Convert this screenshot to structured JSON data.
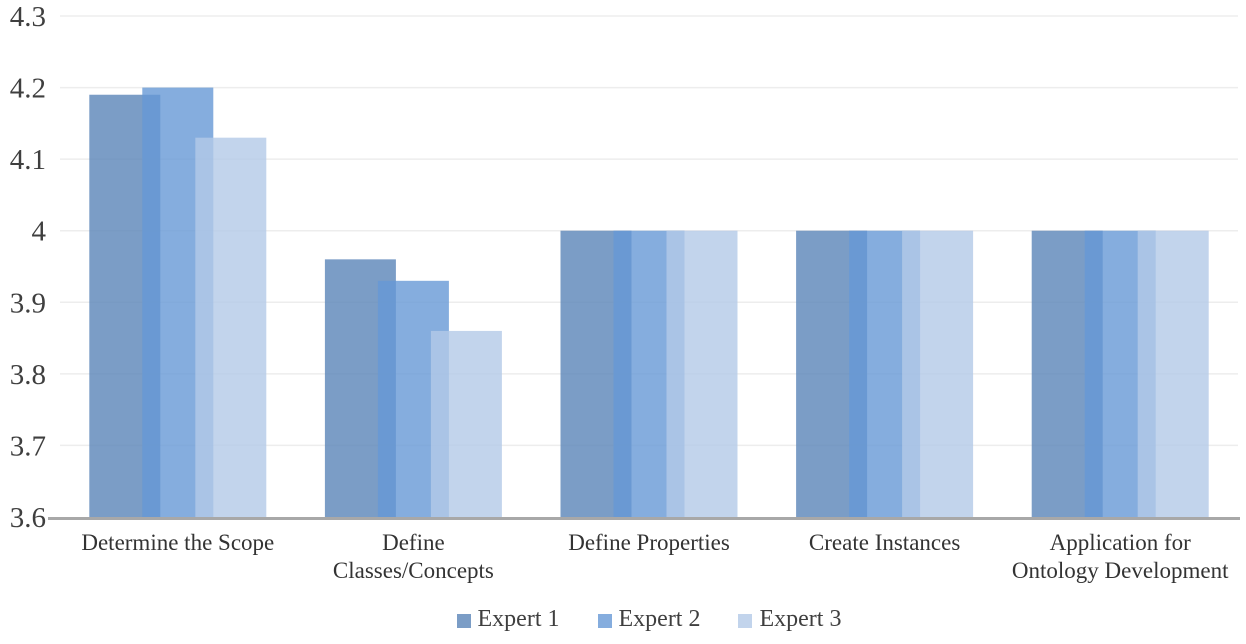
{
  "figure": {
    "background": "#ffffff"
  },
  "chart_data": {
    "type": "bar",
    "title": "",
    "xlabel": "",
    "ylabel": "",
    "categories": [
      "Determine the Scope",
      "Define Classes/Concepts",
      "Define Properties",
      "Create Instances",
      "Application for Ontology Development"
    ],
    "category_label_lines": [
      [
        "Determine the Scope"
      ],
      [
        "Define",
        "Classes/Concepts"
      ],
      [
        "Define Properties"
      ],
      [
        "Create Instances"
      ],
      [
        "Application for",
        "Ontology Development"
      ]
    ],
    "series": [
      {
        "name": "Expert 1",
        "color": "#5A84B8",
        "values": [
          4.19,
          3.96,
          4.0,
          4.0,
          4.0
        ]
      },
      {
        "name": "Expert 2",
        "color": "#6699D6",
        "values": [
          4.2,
          3.93,
          4.0,
          4.0,
          4.0
        ]
      },
      {
        "name": "Expert 3",
        "color": "#B3C9E7",
        "values": [
          4.13,
          3.86,
          4.0,
          4.0,
          4.0
        ]
      }
    ],
    "bar_fill_opacity": 0.8,
    "ylim": [
      3.6,
      4.3
    ],
    "ytick_values": [
      3.6,
      3.7,
      3.8,
      3.9,
      4.0,
      4.1,
      4.2,
      4.3
    ],
    "ytick_labels": [
      "3.6",
      "3.7",
      "3.8",
      "3.9",
      "4",
      "4.1",
      "4.2",
      "4.3"
    ],
    "grid": true,
    "legend_position": "bottom-center",
    "colors": {
      "gridline": "#EDEDED",
      "axis_line": "#A8A8A8",
      "text": "#3f3f3f"
    }
  }
}
